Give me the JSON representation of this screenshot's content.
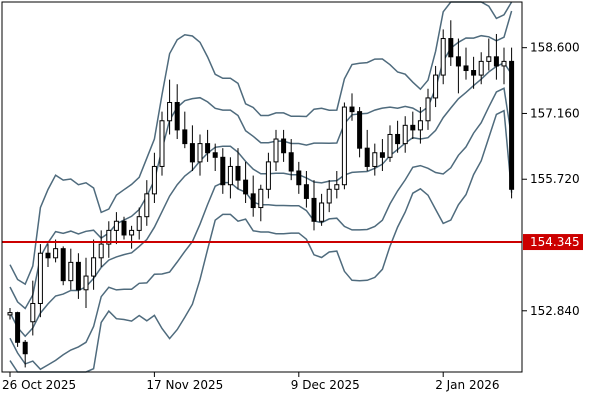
{
  "chart_data": {
    "type": "candlestick",
    "title": "",
    "xlabel": "",
    "ylabel": "",
    "ylim": [
      151.5,
      159.6
    ],
    "y_ticks": [
      {
        "value": 158.6,
        "label": "158.600"
      },
      {
        "value": 157.16,
        "label": "157.160"
      },
      {
        "value": 155.72,
        "label": "155.720"
      },
      {
        "value": 152.84,
        "label": "152.840"
      }
    ],
    "x_ticks": [
      {
        "index": 0,
        "label": "26 Oct 2025"
      },
      {
        "index": 19,
        "label": "17 Nov 2025"
      },
      {
        "index": 38,
        "label": "9 Dec 2025"
      },
      {
        "index": 57,
        "label": "2 Jan 2026"
      }
    ],
    "horizontal_line": {
      "value": 154.345,
      "label": "154.345",
      "color": "#cc0000"
    },
    "colors": {
      "bull_candle": "#ffffff",
      "bear_candle": "#000000",
      "wick": "#000000",
      "bands": "#4f6b7d",
      "frame": "#000000"
    },
    "series": [
      {
        "name": "candles",
        "ohlc": [
          [
            152.75,
            152.9,
            152.65,
            152.8
          ],
          [
            152.8,
            152.82,
            152.05,
            152.15
          ],
          [
            152.15,
            152.2,
            151.6,
            151.9
          ],
          [
            152.6,
            153.5,
            152.3,
            153.0
          ],
          [
            153.0,
            154.3,
            152.7,
            154.1
          ],
          [
            154.1,
            154.3,
            153.8,
            154.0
          ],
          [
            154.0,
            154.4,
            153.9,
            154.2
          ],
          [
            154.2,
            154.25,
            153.4,
            153.5
          ],
          [
            153.5,
            154.2,
            153.3,
            153.9
          ],
          [
            153.9,
            154.1,
            153.1,
            153.3
          ],
          [
            153.3,
            154.0,
            152.9,
            153.6
          ],
          [
            153.6,
            154.4,
            153.3,
            154.0
          ],
          [
            154.0,
            154.6,
            153.8,
            154.3
          ],
          [
            154.3,
            154.8,
            154.0,
            154.6
          ],
          [
            154.6,
            155.0,
            154.3,
            154.8
          ],
          [
            154.8,
            154.9,
            154.4,
            154.5
          ],
          [
            154.5,
            154.7,
            154.2,
            154.6
          ],
          [
            154.6,
            155.1,
            154.4,
            154.9
          ],
          [
            154.9,
            155.7,
            154.7,
            155.4
          ],
          [
            155.4,
            156.3,
            155.2,
            156.0
          ],
          [
            156.0,
            157.2,
            155.8,
            157.0
          ],
          [
            157.0,
            157.9,
            156.7,
            157.4
          ],
          [
            157.4,
            157.8,
            156.6,
            156.8
          ],
          [
            156.8,
            157.2,
            156.4,
            156.5
          ],
          [
            156.5,
            156.9,
            155.9,
            156.1
          ],
          [
            156.1,
            156.7,
            155.8,
            156.5
          ],
          [
            156.5,
            156.8,
            156.1,
            156.3
          ],
          [
            156.3,
            156.5,
            155.9,
            156.2
          ],
          [
            156.2,
            156.4,
            155.4,
            155.6
          ],
          [
            155.6,
            156.2,
            155.3,
            156.0
          ],
          [
            156.0,
            156.4,
            155.5,
            155.7
          ],
          [
            155.7,
            156.1,
            155.2,
            155.4
          ],
          [
            155.4,
            155.8,
            154.9,
            155.1
          ],
          [
            155.1,
            155.6,
            154.8,
            155.5
          ],
          [
            155.5,
            156.3,
            155.3,
            156.1
          ],
          [
            156.1,
            156.8,
            155.9,
            156.6
          ],
          [
            156.6,
            156.8,
            156.1,
            156.3
          ],
          [
            156.3,
            156.6,
            155.7,
            155.9
          ],
          [
            155.9,
            156.1,
            155.4,
            155.6
          ],
          [
            155.6,
            155.9,
            155.1,
            155.3
          ],
          [
            155.3,
            155.7,
            154.6,
            154.8
          ],
          [
            154.8,
            155.4,
            154.7,
            155.2
          ],
          [
            155.2,
            155.7,
            155.0,
            155.5
          ],
          [
            155.5,
            155.9,
            155.3,
            155.6
          ],
          [
            155.6,
            157.4,
            155.5,
            157.3
          ],
          [
            157.3,
            157.6,
            157.0,
            157.2
          ],
          [
            157.2,
            157.3,
            156.2,
            156.4
          ],
          [
            156.4,
            156.8,
            155.9,
            156.0
          ],
          [
            156.0,
            156.5,
            155.8,
            156.3
          ],
          [
            156.3,
            156.6,
            155.9,
            156.2
          ],
          [
            156.2,
            156.9,
            156.1,
            156.7
          ],
          [
            156.7,
            157.0,
            156.3,
            156.5
          ],
          [
            156.5,
            157.1,
            156.3,
            156.9
          ],
          [
            156.9,
            157.2,
            156.6,
            156.8
          ],
          [
            156.8,
            157.3,
            156.5,
            157.0
          ],
          [
            157.0,
            157.7,
            156.8,
            157.5
          ],
          [
            157.5,
            158.2,
            157.3,
            158.0
          ],
          [
            158.0,
            159.0,
            157.8,
            158.8
          ],
          [
            158.8,
            159.2,
            158.2,
            158.4
          ],
          [
            158.4,
            158.8,
            157.6,
            158.2
          ],
          [
            158.2,
            158.6,
            157.9,
            158.1
          ],
          [
            158.1,
            158.4,
            157.7,
            158.0
          ],
          [
            158.0,
            158.5,
            157.8,
            158.3
          ],
          [
            158.3,
            158.8,
            158.1,
            158.4
          ],
          [
            158.4,
            158.9,
            157.9,
            158.2
          ],
          [
            158.2,
            158.6,
            157.8,
            158.3
          ],
          [
            158.3,
            158.6,
            155.3,
            155.5
          ]
        ]
      }
    ]
  }
}
